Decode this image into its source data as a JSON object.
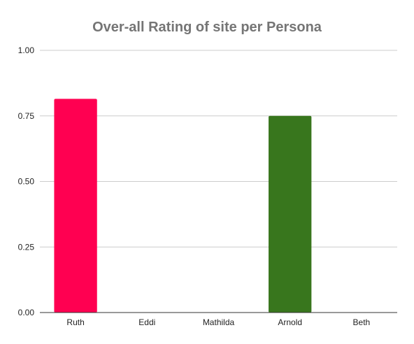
{
  "chart_data": {
    "type": "bar",
    "title": "Over-all Rating of site per Persona",
    "xlabel": "",
    "ylabel": "",
    "categories": [
      "Ruth",
      "Eddi",
      "Mathilda",
      "Arnold",
      "Beth"
    ],
    "values": [
      0.815,
      0,
      0,
      0.75,
      0
    ],
    "bar_colors": [
      "#ff0051",
      "#ff0051",
      "#ff0051",
      "#38761d",
      "#ff0051"
    ],
    "ylim": [
      0,
      1
    ],
    "yticks": [
      "0.00",
      "0.25",
      "0.50",
      "0.75",
      "1.00"
    ],
    "ytick_values": [
      0,
      0.25,
      0.5,
      0.75,
      1
    ],
    "grid": true,
    "legend": "none"
  }
}
